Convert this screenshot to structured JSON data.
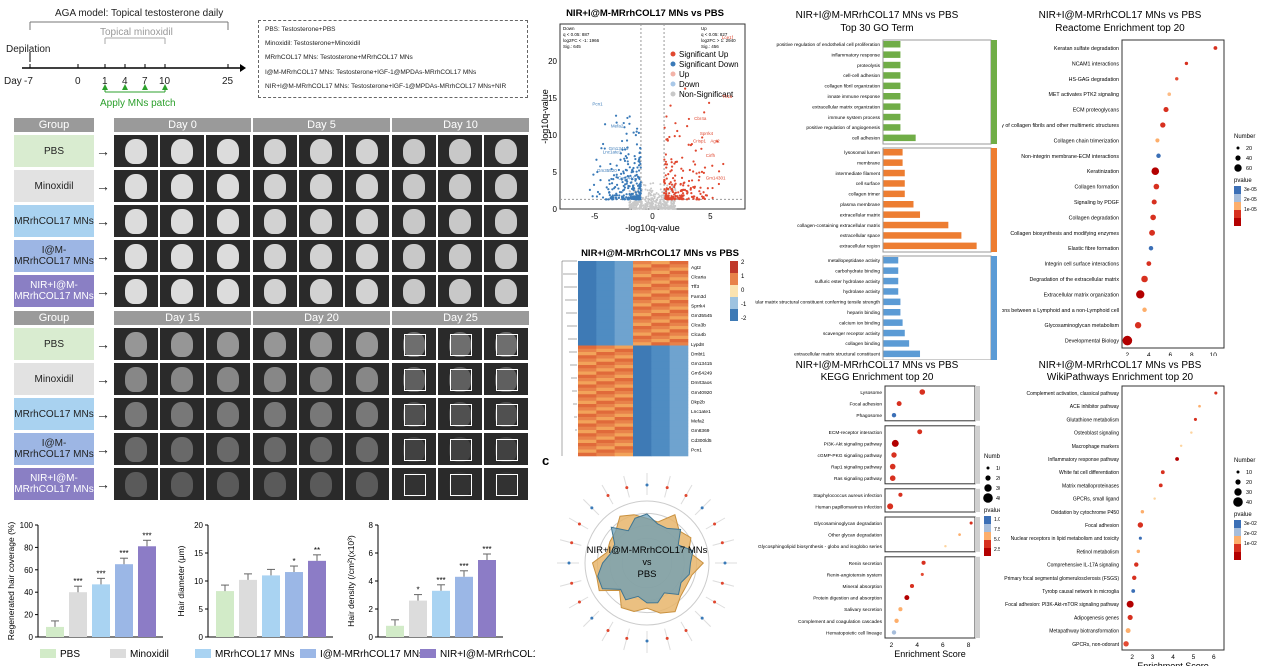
{
  "timeline": {
    "title": "AGA model: Topical testosterone daily",
    "subtitle": "Topical minoxidil",
    "depilation": "Depilation",
    "day_label": "Day",
    "days": [
      "-7",
      "0",
      "1",
      "4",
      "7",
      "10",
      "25"
    ],
    "apply": "Apply MNs patch"
  },
  "legend_box": [
    "PBS: Testosterone+PBS",
    "Minoxidil: Testosterone+Minoxidil",
    "MRrhCOL17 MNs: Testosterone+MRrhCOL17 MNs",
    "I@M-MRrhCOL17 MNs: Testosterone+IGF-1@MPDAs-MRrhCOL17 MNs",
    "NIR+I@M-MRrhCOL17 MNs: Testosterone+IGF-1@MPDAs-MRrhCOL17 MNs+NIR"
  ],
  "photo_grid": {
    "group_header": "Group",
    "top_days": [
      "Day 0",
      "Day 5",
      "Day 10"
    ],
    "bottom_days": [
      "Day 15",
      "Day 20",
      "Day 25"
    ],
    "groups": [
      "PBS",
      "Minoxidil",
      "MRrhCOL17 MNs",
      "I@M-MRrhCOL17 MNs",
      "NIR+I@M-MRrhCOL17 MNs"
    ],
    "group_colors": [
      "#d9ecd0",
      "#e2e2e2",
      "#a9d2f0",
      "#9db6e4",
      "#8a7fc4"
    ]
  },
  "bar_legend": [
    "PBS",
    "Minoxidil",
    "MRrhCOL17 MNs",
    "I@M-MRrhCOL17 MNs",
    "NIR+I@M-MRrhCOL17 MNs"
  ],
  "bar_colors": [
    "#d2ebc8",
    "#dcdcdc",
    "#a9d3f2",
    "#9bb7e6",
    "#8c7cc6"
  ],
  "chart_data": [
    {
      "type": "bar",
      "ylabel": "Regenerated hair coverage (%)",
      "ylim": [
        0,
        100
      ],
      "yticks": [
        "0",
        "20",
        "40",
        "60",
        "80",
        "100"
      ],
      "values": [
        9,
        40,
        47,
        65,
        81
      ],
      "sig": [
        "",
        "***",
        "***",
        "***",
        "***"
      ]
    },
    {
      "type": "bar",
      "ylabel": "Hair diameter (μm)",
      "ylim": [
        0,
        20
      ],
      "yticks": [
        "0",
        "5",
        "10",
        "15",
        "20"
      ],
      "values": [
        8.2,
        10.2,
        11,
        11.6,
        13.6
      ],
      "sig": [
        "",
        "",
        "",
        "*",
        "**"
      ]
    },
    {
      "type": "bar",
      "ylabel": "Hair density (/cm²)(x10³)",
      "ylim": [
        0,
        8
      ],
      "yticks": [
        "0",
        "2",
        "4",
        "6",
        "8"
      ],
      "values": [
        0.8,
        2.6,
        3.3,
        4.3,
        5.5
      ],
      "sig": [
        "",
        "*",
        "***",
        "***",
        "***"
      ]
    },
    {
      "type": "scatter",
      "title": "NIR+I@M-MRrhCOL17 MNs  vs  PBS",
      "xlabel": "-log10q-value",
      "ylabel": "-log10q-value",
      "xlim": [
        -8,
        8
      ],
      "ylim": [
        0,
        25
      ],
      "xticks": [
        "-5",
        "0",
        "5"
      ],
      "yticks": [
        "0",
        "5",
        "10",
        "15",
        "20"
      ],
      "legend": [
        "Significant Up",
        "Significant Down",
        "Up",
        "Down",
        "Non-Significant"
      ],
      "legend_colors": [
        "#e0472f",
        "#3a7ab8",
        "#f3b3a8",
        "#a9c8e8",
        "#c8c8c8"
      ],
      "stats_down": [
        "Down",
        "q < 0.05: 887",
        "log2FC < -1: 1966",
        "Sig.: 645"
      ],
      "stats_up": [
        "Up",
        "q < 0.05: 827",
        "log2FC > 1: 2940",
        "Sig.: 456"
      ],
      "down_genes": [
        "Pcn1",
        "Mefa2",
        "Gm13415",
        "Lnc1ate1",
        "Gm35520",
        "Gm5445"
      ],
      "up_genes": [
        "Lce1f",
        "Tlr1a",
        "Cbr4a",
        "Sprrk4",
        "Agt2",
        "Crisp1",
        "Gm14301",
        "Cirfh"
      ]
    },
    {
      "type": "heatmap",
      "title": "NIR+I@M-MRrhCOL17 MNs  vs  PBS",
      "scale": [
        "2",
        "1",
        "0",
        "-1",
        "-2"
      ],
      "genes": [
        "Agt2",
        "Clcaria",
        "Tff3",
        "Fam3d",
        "Sprrk4",
        "Gm35545",
        "Clca3b",
        "Clca4b",
        "Lypd8",
        "Dmbt1",
        "Gm13415",
        "Gm54249",
        "Dmrt3aos",
        "Gm40920",
        "Dkp2b",
        "Lnc1ate1",
        "Mefa2",
        "Gm8369",
        "Cd300ld5",
        "Pcn1"
      ]
    },
    {
      "type": "radar",
      "panel_letter": "c",
      "center_title": "NIR+I@M-MRrhCOL17 MNs",
      "center_vs": "vs",
      "center_ref": "PBS"
    },
    {
      "type": "bar",
      "title": "NIR+I@M-MRrhCOL17 MNs  vs  PBS",
      "subtitle": "Top 30 GO Term",
      "xlabel": "-log10 p-value",
      "xlim": [
        0,
        45
      ],
      "xticks": [
        "0",
        "10",
        "20",
        "30",
        "40"
      ],
      "groups": [
        {
          "color": "#70ad47",
          "terms": [
            "positive regulation of endothelial cell proliferation",
            "inflammatory response",
            "proteolysis",
            "cell-cell adhesion",
            "collagen fibril organization",
            "innate immune response",
            "extracellular matrix organization",
            "immune system process",
            "positive regulation of angiogenesis",
            "cell adhesion"
          ],
          "values": [
            8,
            8,
            8,
            8,
            8,
            8,
            8,
            8,
            8,
            15
          ]
        },
        {
          "color": "#ed7d31",
          "terms": [
            "lysosomal lumen",
            "membrane",
            "intermediate filament",
            "cell surface",
            "collagen trimer",
            "plasma membrane",
            "extracellular matrix",
            "collagen-containing extracellular matrix",
            "extracellular space",
            "extracellular region"
          ],
          "values": [
            9,
            9,
            10,
            10,
            10,
            14,
            17,
            30,
            36,
            43
          ]
        },
        {
          "color": "#5b9bd5",
          "terms": [
            "metallopeptidase activity",
            "carbohydrate binding",
            "sulfuric ester hydrolase activity",
            "hydrolase activity",
            "extracellular matrix structural constituent conferring tensile strength",
            "heparin binding",
            "calcium ion binding",
            "scavenger receptor activity",
            "collagen binding",
            "extracellular matrix structural constituent"
          ],
          "values": [
            7,
            7,
            7,
            7,
            8,
            8,
            9,
            10,
            12,
            17
          ]
        }
      ]
    },
    {
      "type": "scatter",
      "title": "NIR+I@M-MRrhCOL17 MNs  vs  PBS",
      "subtitle": "Reactome Enrichment top 20",
      "xlabel": "Enrichment Score",
      "xlim": [
        1.5,
        11
      ],
      "xticks": [
        "2",
        "4",
        "6",
        "8",
        "10"
      ],
      "terms": [
        "Keratan sulfate degradation",
        "NCAM1 interactions",
        "HS-GAG degradation",
        "MET activates PTK2 signaling",
        "ECM proteoglycans",
        "Assembly of collagen fibrils and other multimeric structures",
        "Collagen chain trimerization",
        "Non-integrin membrane-ECM interactions",
        "Keratinization",
        "Collagen formation",
        "Signaling by PDGF",
        "Collagen degradation",
        "Collagen biosynthesis and modifying enzymes",
        "Elastic fibre formation",
        "Integrin cell surface interactions",
        "Degradation of the extracellular matrix",
        "Extracellular matrix organization",
        "Immunoregulatory interactions between a Lymphoid and a non-Lymphoid cell",
        "Glycosaminoglycan metabolism",
        "Developmental Biology"
      ],
      "values": [
        10.2,
        7.5,
        6.6,
        5.9,
        5.6,
        5.3,
        4.8,
        4.9,
        4.6,
        4.7,
        4.5,
        4.4,
        4.3,
        4.2,
        4.0,
        3.6,
        3.2,
        3.6,
        3.0,
        2.0
      ],
      "sizes": [
        10,
        8,
        8,
        9,
        18,
        20,
        12,
        14,
        40,
        22,
        18,
        22,
        24,
        14,
        16,
        30,
        48,
        14,
        28,
        64
      ],
      "colors": [
        "#d7301f",
        "#d7301f",
        "#e34a33",
        "#fdbb84",
        "#d7301f",
        "#d7301f",
        "#fdae6b",
        "#3b6fb6",
        "#b30000",
        "#d7301f",
        "#d7301f",
        "#d7301f",
        "#d7301f",
        "#3b6fb6",
        "#d7301f",
        "#d7301f",
        "#b30000",
        "#fdae6b",
        "#d7301f",
        "#b30000"
      ],
      "legend_size_title": "Number",
      "legend_sizes": [
        "20",
        "40",
        "60"
      ],
      "legend_color_title": "pvalue",
      "legend_colors": [
        "3e-05",
        "2e-05",
        "1e-05"
      ]
    },
    {
      "type": "scatter",
      "title": "NIR+I@M-MRrhCOL17 MNs  vs  PBS",
      "subtitle": "KEGG Enrichment top 20",
      "xlabel": "Enrichment Score",
      "xlim": [
        1.5,
        8.5
      ],
      "xticks": [
        "2",
        "4",
        "6",
        "8"
      ],
      "blocks": [
        {
          "terms": [
            "Lysosome",
            "Focal adhesion",
            "Phagosome"
          ],
          "values": [
            4.4,
            2.6,
            2.2
          ],
          "sizes": [
            26,
            20,
            16
          ],
          "colors": [
            "#d7301f",
            "#d7301f",
            "#3b6fb6"
          ]
        },
        {
          "terms": [
            "ECM-receptor interaction",
            "PI3K-Akt signaling pathway",
            "cGMP-PKG signaling pathway",
            "Rap1 signaling pathway",
            "Ras signaling pathway"
          ],
          "values": [
            4.2,
            2.3,
            2.2,
            2.1,
            2.1
          ],
          "sizes": [
            20,
            40,
            24,
            26,
            26
          ],
          "colors": [
            "#d7301f",
            "#b30000",
            "#d7301f",
            "#d7301f",
            "#d7301f"
          ]
        },
        {
          "terms": [
            "Staphylococcus aureus infection",
            "Human papillomavirus infection"
          ],
          "values": [
            2.7,
            1.9
          ],
          "sizes": [
            14,
            30
          ],
          "colors": [
            "#d7301f",
            "#d7301f"
          ]
        },
        {
          "terms": [
            "Glycosaminoglycan degradation",
            "Other glycan degradation",
            "Glycosphingolipid biosynthesis - globo and isoglobo series"
          ],
          "values": [
            8.2,
            7.3,
            6.2
          ],
          "sizes": [
            8,
            6,
            5
          ],
          "colors": [
            "#d7301f",
            "#fdae6b",
            "#fdd49e"
          ]
        },
        {
          "terms": [
            "Renin secretion",
            "Renin-angiotensin system",
            "Mineral absorption",
            "Protein digestion and absorption",
            "Salivary secretion",
            "Complement and coagulation cascades",
            "Hematopoietic cell lineage"
          ],
          "values": [
            4.5,
            4.4,
            3.6,
            3.2,
            2.7,
            2.4,
            2.2
          ],
          "sizes": [
            14,
            8,
            14,
            20,
            14,
            16,
            16
          ],
          "colors": [
            "#d7301f",
            "#e34a33",
            "#d7301f",
            "#b30000",
            "#fdae6b",
            "#fdae6b",
            "#a6bddb"
          ]
        }
      ],
      "legend_size_title": "Number",
      "legend_sizes": [
        "10",
        "20",
        "30",
        "40"
      ],
      "legend_color_title": "pvalue",
      "legend_colors": [
        "1.0e-03",
        "7.5e-04",
        "5.0e-04",
        "2.5e-04"
      ]
    },
    {
      "type": "scatter",
      "title": "NIR+I@M-MRrhCOL17 MNs  vs  PBS",
      "subtitle": "WikiPathways Enrichment top 20",
      "xlabel": "Enrichment Score",
      "xlim": [
        1.5,
        6.5
      ],
      "xticks": [
        "2",
        "3",
        "4",
        "5",
        "6"
      ],
      "terms": [
        "Complement activation, classical pathway",
        "ACE inhibitor pathway",
        "Glutathione metabolism",
        "Osteoblast signaling",
        "Macrophage markers",
        "Inflammatory response pathway",
        "White fat cell differentiation",
        "Matrix metalloproteinases",
        "GPCRs, small ligand",
        "Oxidation by cytochrome P450",
        "Focal adhesion",
        "Nuclear receptors in lipid metabolism and toxicity",
        "Retinol metabolism",
        "Comprehensive IL-17A signaling",
        "Primary focal segmental glomerulosclerosis (FSGS)",
        "Tyrobp causal network in microglia",
        "Focal adhesion: PI3K-Akt-mTOR signaling pathway",
        "Adipogenesis genes",
        "Metapathway biotransformation",
        "GPCRs, non-odorant"
      ],
      "values": [
        6.1,
        5.3,
        5.1,
        4.9,
        4.4,
        4.2,
        3.5,
        3.4,
        3.1,
        2.5,
        2.4,
        2.4,
        2.3,
        2.2,
        2.1,
        2.05,
        1.9,
        1.9,
        1.8,
        1.7
      ],
      "sizes": [
        8,
        6,
        8,
        5,
        5,
        12,
        12,
        12,
        5,
        10,
        24,
        8,
        10,
        16,
        16,
        12,
        40,
        22,
        20,
        24
      ],
      "colors": [
        "#d7301f",
        "#fdae6b",
        "#d7301f",
        "#fdd49e",
        "#fdd49e",
        "#b30000",
        "#d7301f",
        "#d7301f",
        "#fdd49e",
        "#fdae6b",
        "#d7301f",
        "#3b6fb6",
        "#fdae6b",
        "#d7301f",
        "#d7301f",
        "#3b6fb6",
        "#b30000",
        "#d7301f",
        "#fdae6b",
        "#e34a33"
      ],
      "legend_size_title": "Number",
      "legend_sizes": [
        "10",
        "20",
        "30",
        "40"
      ],
      "legend_color_title": "pvalue",
      "legend_colors": [
        "3e-02",
        "2e-02",
        "1e-02"
      ]
    }
  ]
}
